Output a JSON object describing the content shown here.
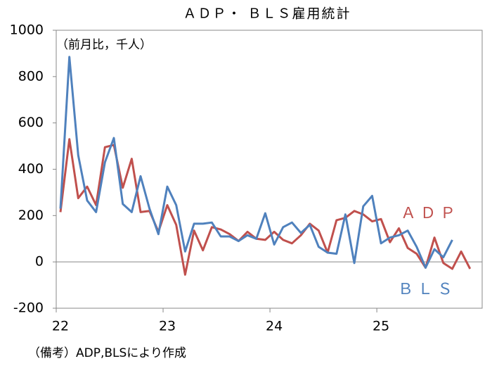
{
  "chart_data": {
    "type": "line",
    "title": "ＡＤＰ・ ＢＬＳ雇用統計",
    "unit_note": "（前月比，千人）",
    "footnote": "（備考）ADP,BLSにより作成",
    "categories": [
      "22",
      null,
      null,
      null,
      null,
      null,
      null,
      null,
      null,
      null,
      null,
      null,
      "23",
      null,
      null,
      null,
      null,
      null,
      null,
      null,
      null,
      null,
      null,
      null,
      "24",
      null,
      null,
      null,
      null,
      null,
      null,
      null,
      null,
      null,
      null,
      null,
      "25",
      null,
      null,
      null,
      null,
      null,
      null,
      null,
      null,
      null,
      null
    ],
    "series": [
      {
        "name": "ＡＤＰ",
        "color": "#c0504d",
        "values": [
          215,
          530,
          275,
          325,
          245,
          495,
          505,
          320,
          445,
          215,
          220,
          130,
          245,
          160,
          -55,
          135,
          50,
          150,
          140,
          120,
          90,
          130,
          100,
          95,
          130,
          95,
          80,
          115,
          165,
          135,
          40,
          180,
          190,
          220,
          205,
          175,
          185,
          85,
          145,
          60,
          35,
          -25,
          105,
          -5,
          -30,
          45,
          -30
        ]
      },
      {
        "name": "ＢＬＳ",
        "color": "#4f81bd",
        "values": [
          230,
          885,
          460,
          265,
          215,
          430,
          535,
          250,
          215,
          370,
          230,
          120,
          325,
          245,
          45,
          165,
          165,
          170,
          110,
          110,
          90,
          115,
          100,
          210,
          75,
          150,
          170,
          125,
          160,
          65,
          40,
          35,
          205,
          -5,
          240,
          285,
          80,
          105,
          115,
          135,
          65,
          -25,
          55,
          20,
          95,
          null,
          null
        ]
      }
    ],
    "ylim": [
      -200,
      1000
    ],
    "yticks": [
      -200,
      0,
      200,
      400,
      600,
      800,
      1000
    ],
    "zero_line": true
  }
}
